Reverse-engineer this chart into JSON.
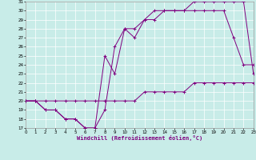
{
  "xlabel": "Windchill (Refroidissement éolien,°C)",
  "bg_color": "#c8ece8",
  "line_color": "#800080",
  "grid_color": "#ffffff",
  "xmin": 0,
  "xmax": 23,
  "ymin": 17,
  "ymax": 31,
  "curve1_x": [
    0,
    1,
    2,
    3,
    4,
    5,
    6,
    7,
    8,
    9,
    10,
    11,
    12,
    13,
    14,
    15,
    16,
    17,
    18,
    19,
    20,
    21,
    22,
    23
  ],
  "curve1_y": [
    20,
    20,
    19,
    19,
    18,
    18,
    17,
    17,
    19,
    26,
    28,
    28,
    29,
    30,
    30,
    30,
    30,
    31,
    31,
    31,
    31,
    31,
    31,
    23
  ],
  "curve2_x": [
    0,
    1,
    2,
    3,
    4,
    5,
    6,
    7,
    8,
    9,
    10,
    11,
    12,
    13,
    14,
    15,
    16,
    17,
    18,
    19,
    20,
    21,
    22,
    23
  ],
  "curve2_y": [
    20,
    20,
    19,
    19,
    18,
    18,
    17,
    17,
    25,
    23,
    28,
    27,
    29,
    29,
    30,
    30,
    30,
    30,
    30,
    30,
    30,
    27,
    24,
    24
  ],
  "curve3_x": [
    0,
    1,
    2,
    3,
    4,
    5,
    6,
    7,
    8,
    9,
    10,
    11,
    12,
    13,
    14,
    15,
    16,
    17,
    18,
    19,
    20,
    21,
    22,
    23
  ],
  "curve3_y": [
    20,
    20,
    20,
    20,
    20,
    20,
    20,
    20,
    20,
    20,
    20,
    20,
    21,
    21,
    21,
    21,
    21,
    22,
    22,
    22,
    22,
    22,
    22,
    22
  ]
}
